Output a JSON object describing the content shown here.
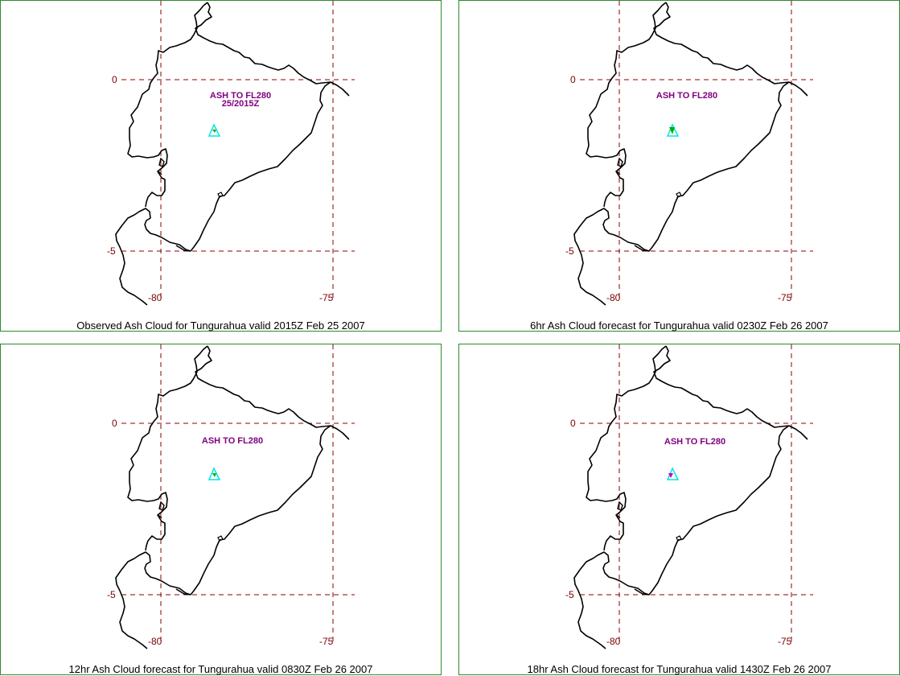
{
  "panels": [
    {
      "caption": "Observed Ash Cloud for Tungurahua valid 2015Z Feb 25 2007",
      "ash_label": "ASH TO FL280",
      "ash_sublabel": "25/2015Z",
      "marker": "cyan-triangle-volcano-icon"
    },
    {
      "caption": "6hr Ash Cloud forecast for Tungurahua valid 0230Z Feb 26 2007",
      "ash_label": "ASH TO FL280",
      "ash_sublabel": "",
      "marker": "cyan-triangle-volcano-icon"
    },
    {
      "caption": "12hr Ash Cloud forecast for Tungurahua valid 0830Z Feb 26 2007",
      "ash_label": "ASH TO FL280",
      "ash_sublabel": "",
      "marker": "cyan-triangle-volcano-icon"
    },
    {
      "caption": "18hr Ash Cloud forecast for Tungurahua valid 1430Z Feb 26 2007",
      "ash_label": "ASH TO FL280",
      "ash_sublabel": "",
      "marker": "cyan-triangle-volcano-icon"
    }
  ],
  "grid_labels": {
    "lat_0": "0",
    "lat_minus5": "-5",
    "lon_minus80": "-80",
    "lon_minus75": "-75"
  },
  "colors": {
    "border": "#2e8b2e",
    "grid": "#8b0000",
    "label": "#7a0000",
    "coast": "#000000",
    "ash_text": "#800080",
    "volcano": "#00e5e5"
  }
}
